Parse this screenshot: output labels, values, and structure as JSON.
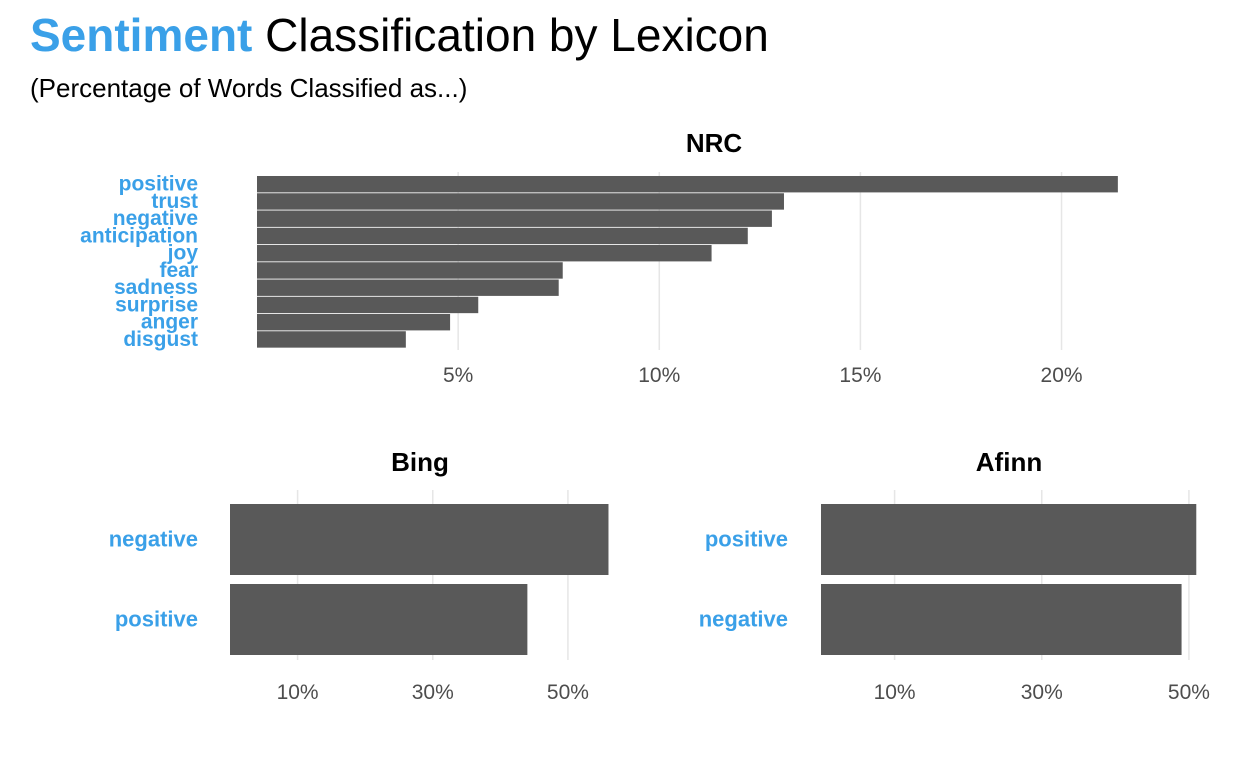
{
  "title": {
    "accent_word": "Sentiment",
    "rest": " Classification by Lexicon"
  },
  "subtitle": "(Percentage of Words Classified as...)",
  "colors": {
    "accent": "#3aa0e8",
    "bar": "#595959",
    "grid": "#e6e6e6",
    "tick_text": "#4d4d4d"
  },
  "chart_data": [
    {
      "type": "bar",
      "orientation": "horizontal",
      "title": "NRC",
      "categories": [
        "positive",
        "trust",
        "negative",
        "anticipation",
        "joy",
        "fear",
        "sadness",
        "surprise",
        "anger",
        "disgust"
      ],
      "values": [
        21.4,
        13.1,
        12.8,
        12.2,
        11.3,
        7.6,
        7.5,
        5.5,
        4.8,
        3.7
      ],
      "xticks": [
        5,
        10,
        15,
        20
      ],
      "xtick_labels": [
        "5%",
        "10%",
        "15%",
        "20%"
      ],
      "xlim": [
        0,
        22
      ],
      "xlabel": "",
      "ylabel": "",
      "grid": true,
      "unit": "%"
    },
    {
      "type": "bar",
      "orientation": "horizontal",
      "title": "Bing",
      "categories": [
        "negative",
        "positive"
      ],
      "values": [
        56,
        44
      ],
      "xticks": [
        10,
        30,
        50
      ],
      "xtick_labels": [
        "10%",
        "30%",
        "50%"
      ],
      "xlim": [
        0,
        58
      ],
      "xlabel": "",
      "ylabel": "",
      "grid": true,
      "unit": "%"
    },
    {
      "type": "bar",
      "orientation": "horizontal",
      "title": "Afinn",
      "categories": [
        "positive",
        "negative"
      ],
      "values": [
        51,
        49
      ],
      "xticks": [
        10,
        30,
        50
      ],
      "xtick_labels": [
        "10%",
        "30%",
        "50%"
      ],
      "xlim": [
        0,
        53
      ],
      "xlabel": "",
      "ylabel": "",
      "grid": true,
      "unit": "%"
    }
  ]
}
